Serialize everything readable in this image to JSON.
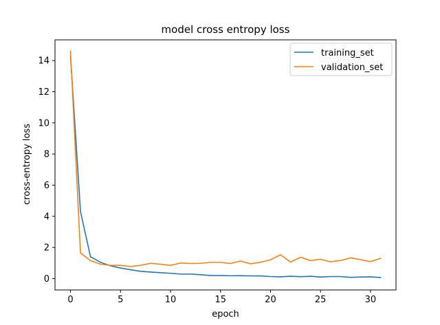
{
  "chart_data": {
    "type": "line",
    "title": "model cross entropy loss",
    "xlabel": "epoch",
    "ylabel": "cross-entropy loss",
    "xlim": [
      -1.55,
      32.55
    ],
    "ylim": [
      -0.73,
      15.33
    ],
    "xticks": [
      0,
      5,
      10,
      15,
      20,
      25,
      30
    ],
    "yticks": [
      0,
      2,
      4,
      6,
      8,
      10,
      12,
      14
    ],
    "grid": false,
    "legend_position": "top-right",
    "x": [
      0,
      1,
      2,
      3,
      4,
      5,
      6,
      7,
      8,
      9,
      10,
      11,
      12,
      13,
      14,
      15,
      16,
      17,
      18,
      19,
      20,
      21,
      22,
      23,
      24,
      25,
      26,
      27,
      28,
      29,
      30,
      31
    ],
    "series": [
      {
        "name": "training_set",
        "color": "#1f77b4",
        "values": [
          14.3,
          4.3,
          1.4,
          1.05,
          0.82,
          0.68,
          0.57,
          0.47,
          0.42,
          0.38,
          0.34,
          0.29,
          0.29,
          0.25,
          0.2,
          0.2,
          0.18,
          0.19,
          0.17,
          0.17,
          0.13,
          0.11,
          0.15,
          0.12,
          0.15,
          0.1,
          0.13,
          0.13,
          0.08,
          0.1,
          0.11,
          0.07
        ]
      },
      {
        "name": "validation_set",
        "color": "#ff7f0e",
        "values": [
          14.6,
          1.65,
          1.15,
          0.93,
          0.85,
          0.85,
          0.77,
          0.85,
          0.98,
          0.92,
          0.85,
          1.0,
          0.97,
          0.98,
          1.04,
          1.04,
          0.97,
          1.13,
          0.95,
          1.05,
          1.2,
          1.53,
          1.06,
          1.37,
          1.16,
          1.24,
          1.08,
          1.16,
          1.33,
          1.22,
          1.09,
          1.3
        ]
      }
    ]
  }
}
